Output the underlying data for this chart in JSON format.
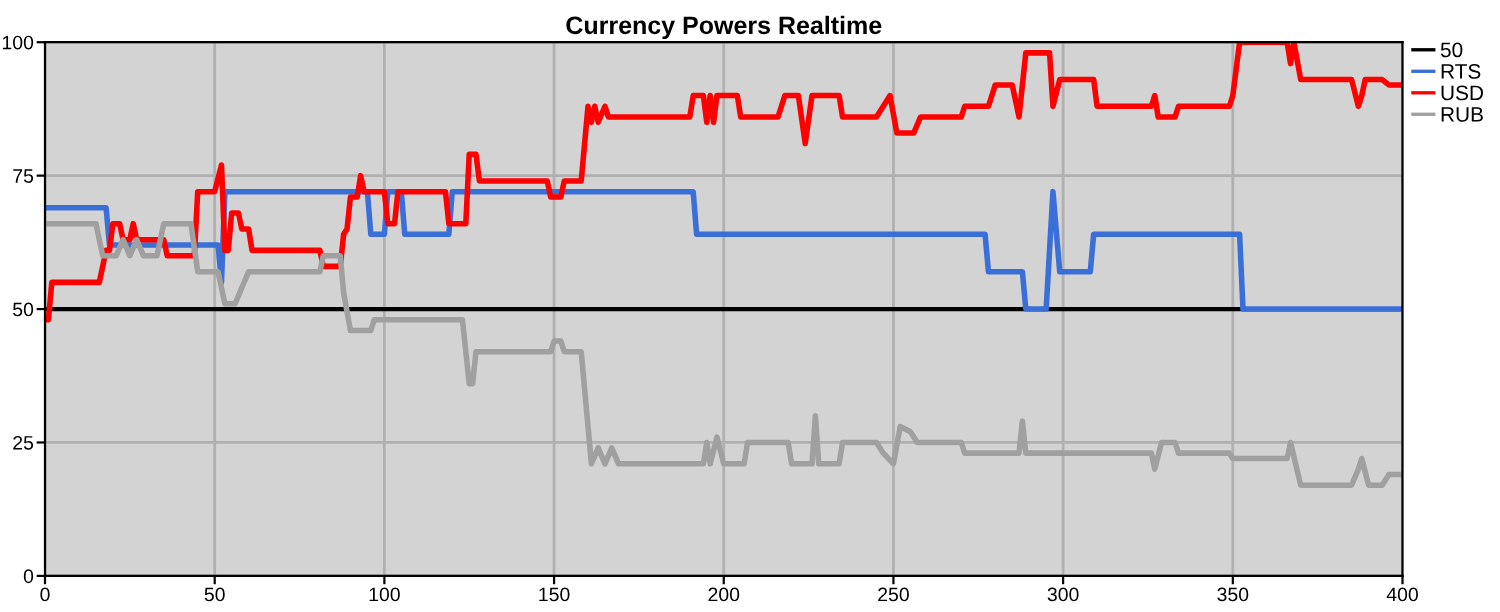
{
  "chart_data": {
    "type": "line",
    "title": "Currency Powers Realtime",
    "xlim": [
      0,
      400
    ],
    "xticks": [
      0,
      50,
      100,
      150,
      200,
      250,
      300,
      350,
      400
    ],
    "ylim": [
      0,
      100
    ],
    "yticks": [
      0,
      25,
      50,
      75,
      100
    ],
    "grid": true,
    "legend": "top right",
    "marker": "none",
    "line_style": "solid",
    "series": [
      {
        "name": "50",
        "color": "#000000",
        "x": [
          0,
          400
        ],
        "values": [
          50,
          50
        ]
      },
      {
        "name": "RTS",
        "color": "#3a6fd8",
        "x": [
          0,
          18,
          19,
          51,
          52,
          53,
          95,
          96,
          100,
          101,
          105,
          106,
          119,
          120,
          191,
          192,
          277,
          278,
          288,
          289,
          295,
          297,
          299,
          308,
          309,
          352,
          353,
          400
        ],
        "values": [
          69,
          69,
          62,
          62,
          55,
          72,
          72,
          64,
          64,
          72,
          72,
          64,
          64,
          72,
          72,
          64,
          64,
          57,
          57,
          50,
          50,
          72,
          57,
          57,
          64,
          64,
          50,
          50
        ]
      },
      {
        "name": "USD",
        "color": "#ff0000",
        "x": [
          0,
          1,
          2,
          16,
          18,
          19,
          20,
          22,
          23,
          25,
          26,
          27,
          35,
          36,
          44,
          45,
          50,
          52,
          53,
          54,
          55,
          57,
          58,
          60,
          61,
          81,
          82,
          87,
          88,
          89,
          90,
          92,
          93,
          94,
          95,
          100,
          101,
          103,
          104,
          118,
          119,
          124,
          125,
          127,
          128,
          148,
          149,
          152,
          153,
          158,
          160,
          161,
          162,
          163,
          165,
          166,
          190,
          191,
          194,
          195,
          196,
          197,
          198,
          204,
          205,
          216,
          218,
          222,
          224,
          226,
          234,
          235,
          245,
          247,
          249,
          251,
          256,
          258,
          270,
          271,
          278,
          280,
          285,
          287,
          289,
          296,
          297,
          299,
          309,
          310,
          326,
          327,
          328,
          333,
          334,
          349,
          350,
          352,
          366,
          367,
          368,
          370,
          385,
          387,
          388,
          389,
          394,
          396,
          400
        ],
        "values": [
          48,
          48,
          55,
          55,
          61,
          61,
          66,
          66,
          63,
          63,
          66,
          63,
          63,
          60,
          60,
          72,
          72,
          77,
          61,
          61,
          68,
          68,
          65,
          65,
          61,
          61,
          58,
          58,
          64,
          65,
          71,
          71,
          75,
          72,
          72,
          72,
          66,
          66,
          72,
          72,
          66,
          66,
          79,
          79,
          74,
          74,
          71,
          71,
          74,
          74,
          88,
          85,
          88,
          85,
          88,
          86,
          86,
          90,
          90,
          85,
          90,
          85,
          90,
          90,
          86,
          86,
          90,
          90,
          81,
          90,
          90,
          86,
          86,
          88,
          90,
          83,
          83,
          86,
          86,
          88,
          88,
          92,
          92,
          86,
          98,
          98,
          88,
          93,
          93,
          88,
          88,
          90,
          86,
          86,
          88,
          88,
          90,
          100,
          100,
          96,
          100,
          93,
          93,
          88,
          90,
          93,
          93,
          92,
          92
        ]
      },
      {
        "name": "RUB",
        "color": "#a0a0a0",
        "x": [
          0,
          15,
          17,
          21,
          23,
          25,
          27,
          29,
          33,
          35,
          43,
          45,
          51,
          53,
          56,
          58,
          60,
          81,
          82,
          87,
          88,
          90,
          96,
          97,
          123,
          125,
          126,
          127,
          149,
          150,
          152,
          153,
          158,
          161,
          163,
          165,
          167,
          169,
          194,
          195,
          196,
          198,
          200,
          206,
          207,
          219,
          220,
          226,
          227,
          228,
          234,
          235,
          245,
          247,
          250,
          252,
          255,
          257,
          270,
          271,
          287,
          288,
          289,
          326,
          327,
          329,
          333,
          334,
          349,
          350,
          366,
          367,
          370,
          385,
          387,
          388,
          390,
          394,
          396,
          400
        ],
        "values": [
          66,
          66,
          60,
          60,
          63,
          60,
          63,
          60,
          60,
          66,
          66,
          57,
          57,
          51,
          51,
          54,
          57,
          57,
          60,
          60,
          53,
          46,
          46,
          48,
          48,
          36,
          36,
          42,
          42,
          44,
          44,
          42,
          42,
          21,
          24,
          21,
          24,
          21,
          21,
          25,
          21,
          26,
          21,
          21,
          25,
          25,
          21,
          21,
          30,
          21,
          21,
          25,
          25,
          23,
          21,
          28,
          27,
          25,
          25,
          23,
          23,
          29,
          23,
          23,
          20,
          25,
          25,
          23,
          23,
          22,
          22,
          25,
          17,
          17,
          20,
          22,
          17,
          17,
          19,
          19
        ]
      }
    ]
  }
}
